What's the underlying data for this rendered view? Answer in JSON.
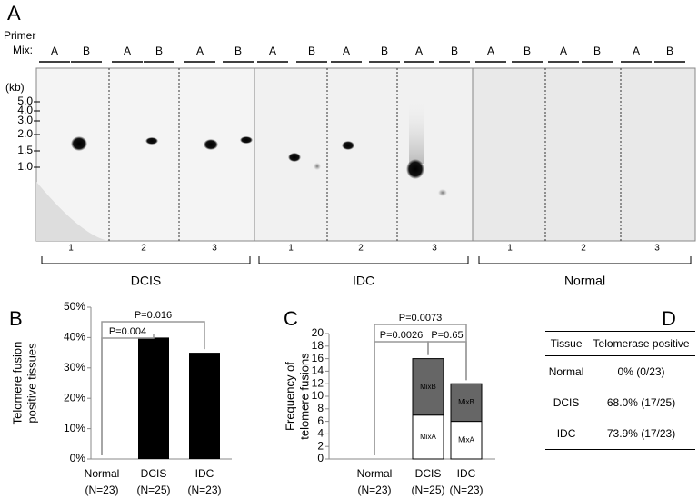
{
  "panel_a": {
    "letter": "A",
    "primer_label": [
      "Primer",
      "Mix:"
    ],
    "lane_labels": [
      "A",
      "B",
      "A",
      "B",
      "A",
      "B",
      "A",
      "B",
      "A",
      "B",
      "A",
      "B",
      "A",
      "B",
      "A",
      "B",
      "A",
      "B"
    ],
    "size_unit": "(kb)",
    "sizes": [
      "5.0",
      "4.0",
      "3.0",
      "2.0",
      "1.5",
      "1.0"
    ],
    "sample_numbers": [
      "1",
      "2",
      "3",
      "1",
      "2",
      "3",
      "1",
      "2",
      "3"
    ],
    "groups": [
      "DCIS",
      "IDC",
      "Normal"
    ]
  },
  "chart_data": [
    {
      "type": "bar",
      "letter": "B",
      "ylabel": [
        "Telomere fusion",
        "positive tissues"
      ],
      "categories": [
        "Normal",
        "DCIS",
        "IDC"
      ],
      "category_counts": [
        "(N=23)",
        "(N=25)",
        "(N=23)"
      ],
      "values": [
        0,
        40,
        35
      ],
      "color": "#000000",
      "ylim": [
        0,
        50
      ],
      "yticks": [
        {
          "value": 0,
          "label": "0%"
        },
        {
          "value": 10,
          "label": "10%"
        },
        {
          "value": 20,
          "label": "20%"
        },
        {
          "value": 30,
          "label": "30%"
        },
        {
          "value": 40,
          "label": "40%"
        },
        {
          "value": 50,
          "label": "50%"
        }
      ],
      "annotations": [
        "P=0.004",
        "P=0.016"
      ]
    },
    {
      "type": "stacked_bar",
      "letter": "C",
      "ylabel": [
        "Frequency of",
        "telomere fusions"
      ],
      "categories": [
        "Normal",
        "DCIS",
        "IDC"
      ],
      "category_counts": [
        "(N=23)",
        "(N=25)",
        "(N=23)"
      ],
      "series": [
        {
          "name": "MixA",
          "color": "#ffffff",
          "values": [
            0,
            7,
            6
          ]
        },
        {
          "name": "MixB",
          "color": "#666666",
          "values": [
            0,
            9,
            6
          ]
        }
      ],
      "ylim": [
        0,
        20
      ],
      "yticks": [
        0,
        2,
        4,
        6,
        8,
        10,
        12,
        14,
        16,
        18,
        20
      ],
      "annotations": [
        "P=0.0073",
        "P=0.0026",
        "P=0.65"
      ]
    }
  ],
  "table": {
    "letter": "D",
    "header": [
      "Tissue",
      "Telomerase positive"
    ],
    "rows": [
      [
        "Normal",
        "0% (0/23)"
      ],
      [
        "DCIS",
        "68.0% (17/25)"
      ],
      [
        "IDC",
        "73.9% (17/23)"
      ]
    ]
  }
}
